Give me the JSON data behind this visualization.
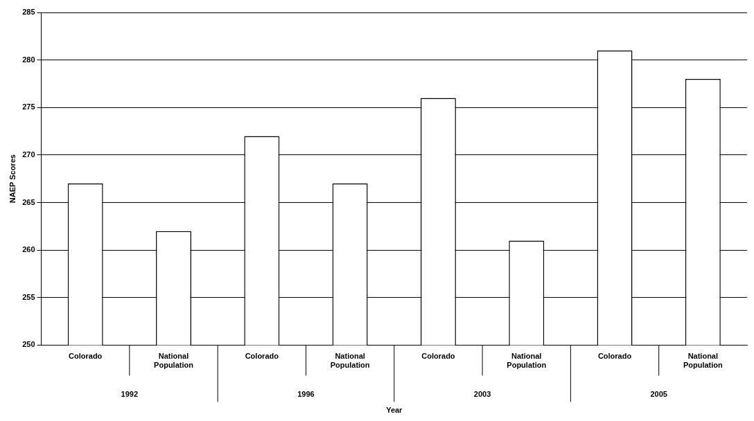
{
  "chart_data": {
    "type": "bar",
    "xlabel": "Year",
    "ylabel": "NAEP Scores",
    "categories": [
      "Colorado",
      "National Population",
      "Colorado",
      "National Population",
      "Colorado",
      "National Population",
      "Colorado",
      "National Population"
    ],
    "values": [
      267,
      262,
      272,
      267,
      276,
      261,
      281,
      278
    ],
    "color": "#ffffff",
    "ylim": [
      250,
      285
    ],
    "yticks": [
      250,
      255,
      260,
      265,
      270,
      275,
      280,
      285
    ],
    "grid": "y",
    "legend": false,
    "annotations": [
      "1992",
      "1996",
      "2003",
      "2005"
    ]
  }
}
